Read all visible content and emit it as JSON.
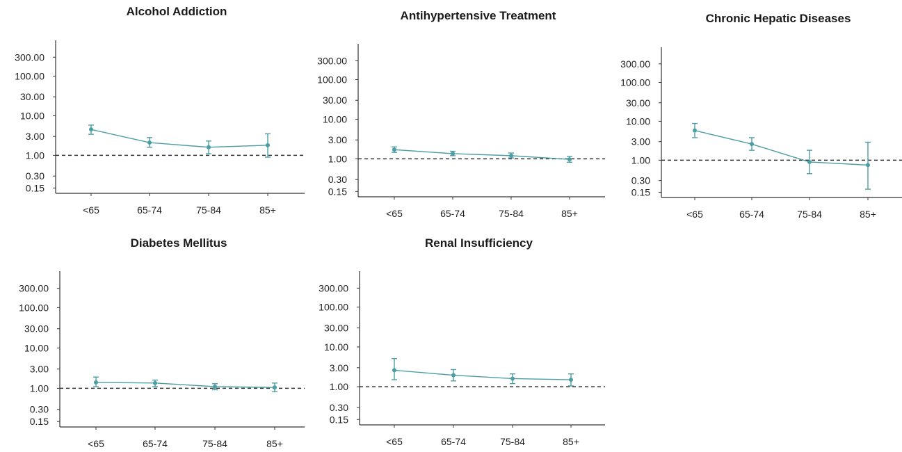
{
  "chart_data": [
    {
      "type": "line",
      "title": "Alcohol Addiction",
      "categories": [
        "<65",
        "65-74",
        "75-84",
        "85+"
      ],
      "yscale": "log",
      "yticks": [
        0.15,
        0.3,
        1.0,
        3.0,
        10.0,
        30.0,
        100.0,
        300.0
      ],
      "ytick_labels": [
        "0.15",
        "0.30",
        "1.00",
        "3.00",
        "10.00",
        "30.00",
        "100.00",
        "300.00"
      ],
      "reference_line": 1.0,
      "series": [
        {
          "values": [
            4.5,
            2.1,
            1.6,
            1.8
          ],
          "ci_low": [
            3.4,
            1.6,
            1.1,
            0.9
          ],
          "ci_high": [
            5.8,
            2.8,
            2.3,
            3.5
          ]
        }
      ]
    },
    {
      "type": "line",
      "title": "Antihypertensive Treatment",
      "categories": [
        "<65",
        "65-74",
        "75-84",
        "85+"
      ],
      "yscale": "log",
      "yticks": [
        0.15,
        0.3,
        1.0,
        3.0,
        10.0,
        30.0,
        100.0,
        300.0
      ],
      "ytick_labels": [
        "0.15",
        "0.30",
        "1.00",
        "3.00",
        "10.00",
        "30.00",
        "100.00",
        "300.00"
      ],
      "reference_line": 1.0,
      "series": [
        {
          "values": [
            1.7,
            1.35,
            1.2,
            0.97
          ],
          "ci_low": [
            1.45,
            1.2,
            1.05,
            0.82
          ],
          "ci_high": [
            2.0,
            1.55,
            1.4,
            1.15
          ]
        }
      ]
    },
    {
      "type": "line",
      "title": "Chronic Hepatic Diseases",
      "categories": [
        "<65",
        "65-74",
        "75-84",
        "85+"
      ],
      "yscale": "log",
      "yticks": [
        0.15,
        0.3,
        1.0,
        3.0,
        10.0,
        30.0,
        100.0,
        300.0
      ],
      "ytick_labels": [
        "0.15",
        "0.30",
        "1.00",
        "3.00",
        "10.00",
        "30.00",
        "100.00",
        "300.00"
      ],
      "reference_line": 1.0,
      "series": [
        {
          "values": [
            5.8,
            2.6,
            0.9,
            0.75
          ],
          "ci_low": [
            3.8,
            1.8,
            0.45,
            0.18
          ],
          "ci_high": [
            8.8,
            3.8,
            1.8,
            2.9
          ]
        }
      ]
    },
    {
      "type": "line",
      "title": "Diabetes Mellitus",
      "categories": [
        "<65",
        "65-74",
        "75-84",
        "85+"
      ],
      "yscale": "log",
      "yticks": [
        0.15,
        0.3,
        1.0,
        3.0,
        10.0,
        30.0,
        100.0,
        300.0
      ],
      "ytick_labels": [
        "0.15",
        "0.30",
        "1.00",
        "3.00",
        "10.00",
        "30.00",
        "100.00",
        "300.00"
      ],
      "reference_line": 1.0,
      "series": [
        {
          "values": [
            1.4,
            1.35,
            1.1,
            1.05
          ],
          "ci_low": [
            1.1,
            1.1,
            0.92,
            0.82
          ],
          "ci_high": [
            1.9,
            1.6,
            1.3,
            1.35
          ]
        }
      ]
    },
    {
      "type": "line",
      "title": "Renal Insufficiency",
      "categories": [
        "<65",
        "65-74",
        "75-84",
        "85+"
      ],
      "yscale": "log",
      "yticks": [
        0.15,
        0.3,
        1.0,
        3.0,
        10.0,
        30.0,
        100.0,
        300.0
      ],
      "ytick_labels": [
        "0.15",
        "0.30",
        "1.00",
        "3.00",
        "10.00",
        "30.00",
        "100.00",
        "300.00"
      ],
      "reference_line": 1.0,
      "series": [
        {
          "values": [
            2.6,
            1.95,
            1.6,
            1.5
          ],
          "ci_low": [
            1.5,
            1.4,
            1.2,
            1.05
          ],
          "ci_high": [
            5.1,
            2.7,
            2.1,
            2.1
          ]
        }
      ]
    }
  ]
}
